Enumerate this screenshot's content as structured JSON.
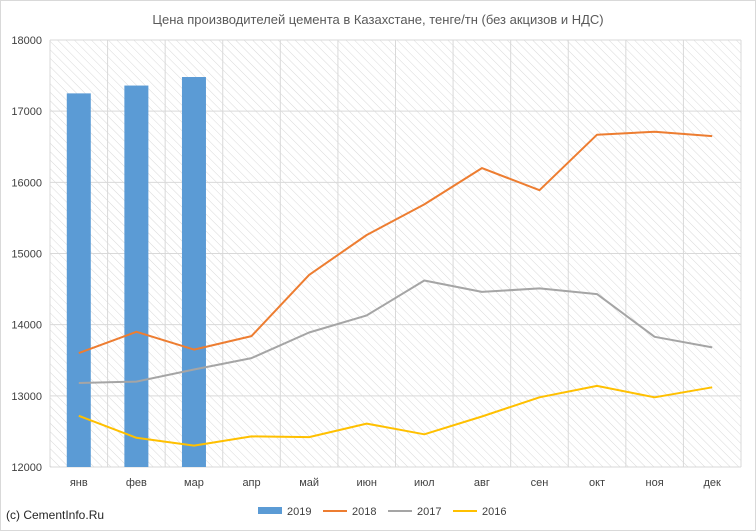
{
  "chart_data": {
    "type": "bar",
    "title": "Цена производителей цемента в Казахстане, тенге/тн (без акцизов и НДС)",
    "categories": [
      "янв",
      "фев",
      "мар",
      "апр",
      "май",
      "июн",
      "июл",
      "авг",
      "сен",
      "окт",
      "ноя",
      "дек"
    ],
    "ylim": [
      12000,
      18000
    ],
    "yticks": [
      12000,
      13000,
      14000,
      15000,
      16000,
      17000,
      18000
    ],
    "grid": true,
    "legend": "bottom",
    "series": [
      {
        "name": "2019",
        "type": "bar",
        "color": "#5b9bd5",
        "values": [
          17250,
          17360,
          17480,
          null,
          null,
          null,
          null,
          null,
          null,
          null,
          null,
          null
        ]
      },
      {
        "name": "2018",
        "type": "line",
        "color": "#ed7d31",
        "values": [
          13600,
          13900,
          13650,
          13840,
          14700,
          15260,
          15690,
          16200,
          15890,
          16670,
          16710,
          16650
        ]
      },
      {
        "name": "2017",
        "type": "line",
        "color": "#a5a5a5",
        "values": [
          13180,
          13200,
          13370,
          13530,
          13890,
          14130,
          14620,
          14460,
          14510,
          14430,
          13830,
          13680
        ]
      },
      {
        "name": "2016",
        "type": "line",
        "color": "#ffc000",
        "values": [
          12720,
          12410,
          12300,
          12430,
          12420,
          12610,
          12460,
          12710,
          12980,
          13140,
          12980,
          13120
        ]
      }
    ]
  },
  "credit": "(c) CementInfo.Ru"
}
